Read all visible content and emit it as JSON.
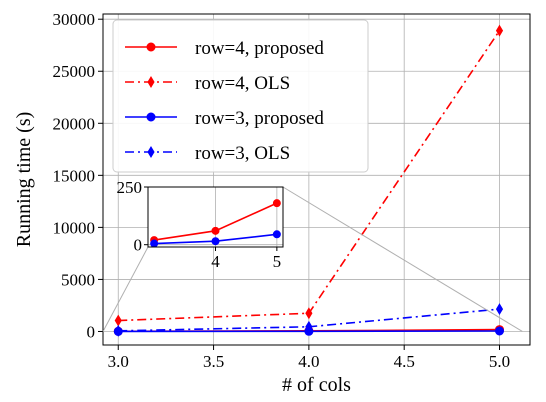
{
  "chart_data": {
    "type": "line",
    "xlabel": "# of cols",
    "ylabel": "Running time (s)",
    "xlim": [
      2.92,
      5.16
    ],
    "ylim": [
      -1300,
      30500
    ],
    "xticks": [
      3.0,
      3.5,
      4.0,
      4.5,
      5.0
    ],
    "xtick_labels": [
      "3.0",
      "3.5",
      "4.0",
      "4.5",
      "5.0"
    ],
    "yticks": [
      0,
      5000,
      10000,
      15000,
      20000,
      25000,
      30000
    ],
    "ytick_labels": [
      "0",
      "5000",
      "10000",
      "15000",
      "20000",
      "25000",
      "30000"
    ],
    "grid": true,
    "legend_position": "upper-left",
    "series": [
      {
        "name": "row=4, proposed",
        "color": "#ff0000",
        "dash": "solid",
        "marker": "circle",
        "x": [
          3,
          4,
          5
        ],
        "y": [
          20,
          60,
          180
        ]
      },
      {
        "name": "row=4, OLS",
        "color": "#ff0000",
        "dash": "dashdot",
        "marker": "diamond",
        "x": [
          3,
          4,
          5
        ],
        "y": [
          1050,
          1750,
          28900
        ]
      },
      {
        "name": "row=3, proposed",
        "color": "#0000ff",
        "dash": "solid",
        "marker": "circle",
        "x": [
          3,
          4,
          5
        ],
        "y": [
          5,
          15,
          45
        ]
      },
      {
        "name": "row=3, OLS",
        "color": "#0000ff",
        "dash": "dashdot",
        "marker": "diamond",
        "x": [
          3,
          4,
          5
        ],
        "y": [
          60,
          450,
          2150
        ]
      }
    ],
    "inset": {
      "xlim": [
        2.9,
        5.1
      ],
      "ylim": [
        -10,
        250
      ],
      "xticks": [
        4,
        5
      ],
      "xtick_labels": [
        "4",
        "5"
      ],
      "yticks": [
        0,
        250
      ],
      "ytick_labels": [
        "0",
        "250"
      ],
      "grid": true,
      "series_indices": [
        0,
        2
      ]
    }
  }
}
